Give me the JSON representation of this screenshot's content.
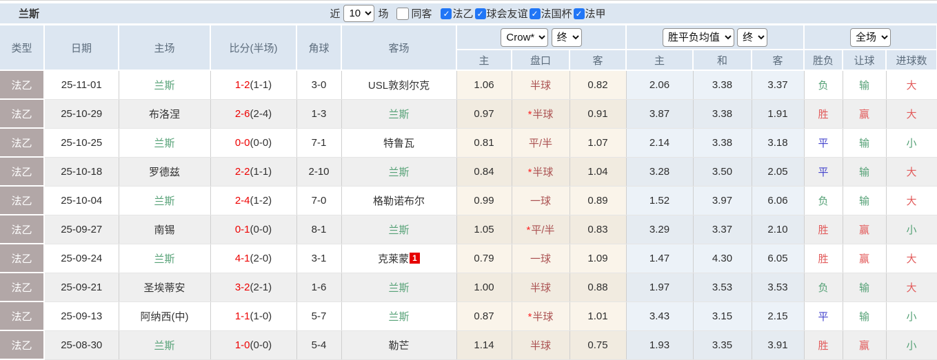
{
  "colors": {
    "header_bg": "#dce6f1",
    "league_cell_bg": "#b2a7a7",
    "team_green": "#55a176",
    "score_red": "#ee0000",
    "handicap_red": "#ab5252",
    "status_red": "#e25b5b",
    "status_green": "#55a176",
    "status_blue": "#4444cc",
    "checkbox_blue": "#2176f6",
    "badge_red": "#e60000"
  },
  "toolbar": {
    "team": "兰斯",
    "recent_label": "近",
    "recent_value": "10",
    "matches_label": "场",
    "same_away_label": "同客",
    "same_away_checked": false,
    "league_filters": [
      {
        "label": "法乙",
        "checked": true
      },
      {
        "label": "球会友谊",
        "checked": true
      },
      {
        "label": "法国杯",
        "checked": true
      },
      {
        "label": "法甲",
        "checked": true
      }
    ]
  },
  "table": {
    "base_columns": [
      "类型",
      "日期",
      "主场",
      "比分(半场)",
      "角球",
      "客场"
    ],
    "groups": {
      "odds": {
        "company": "Crow*",
        "period": "终",
        "sub": [
          "主",
          "盘口",
          "客"
        ]
      },
      "mean": {
        "company": "胜平负均值",
        "period": "终",
        "sub": [
          "主",
          "和",
          "客"
        ]
      },
      "fulltime": {
        "scope": "全场",
        "sub": [
          "胜负",
          "让球",
          "进球数"
        ]
      }
    },
    "rows": [
      {
        "league": "法乙",
        "date": "25-11-01",
        "home": "兰斯",
        "home_team": true,
        "score": "1-2",
        "half": "(1-1)",
        "corner": "3-0",
        "away": "USL敦刻尔克",
        "away_team": false,
        "away_badge": "",
        "odds_home": "1.06",
        "handicap": "半球",
        "handicap_star": false,
        "odds_away": "0.82",
        "mean_home": "2.06",
        "mean_draw": "3.38",
        "mean_away": "3.37",
        "result": "负",
        "result_color": "green",
        "handicap_result": "输",
        "handicap_result_color": "green",
        "goals": "大",
        "goals_color": "red"
      },
      {
        "league": "法乙",
        "date": "25-10-29",
        "home": "布洛涅",
        "home_team": false,
        "score": "2-6",
        "half": "(2-4)",
        "corner": "1-3",
        "away": "兰斯",
        "away_team": true,
        "away_badge": "",
        "odds_home": "0.97",
        "handicap": "半球",
        "handicap_star": true,
        "odds_away": "0.91",
        "mean_home": "3.87",
        "mean_draw": "3.38",
        "mean_away": "1.91",
        "result": "胜",
        "result_color": "red",
        "handicap_result": "赢",
        "handicap_result_color": "red",
        "goals": "大",
        "goals_color": "red"
      },
      {
        "league": "法乙",
        "date": "25-10-25",
        "home": "兰斯",
        "home_team": true,
        "score": "0-0",
        "half": "(0-0)",
        "corner": "7-1",
        "away": "特鲁瓦",
        "away_team": false,
        "away_badge": "",
        "odds_home": "0.81",
        "handicap": "平/半",
        "handicap_star": false,
        "odds_away": "1.07",
        "mean_home": "2.14",
        "mean_draw": "3.38",
        "mean_away": "3.18",
        "result": "平",
        "result_color": "blue",
        "handicap_result": "输",
        "handicap_result_color": "green",
        "goals": "小",
        "goals_color": "green"
      },
      {
        "league": "法乙",
        "date": "25-10-18",
        "home": "罗德兹",
        "home_team": false,
        "score": "2-2",
        "half": "(1-1)",
        "corner": "2-10",
        "away": "兰斯",
        "away_team": true,
        "away_badge": "",
        "odds_home": "0.84",
        "handicap": "半球",
        "handicap_star": true,
        "odds_away": "1.04",
        "mean_home": "3.28",
        "mean_draw": "3.50",
        "mean_away": "2.05",
        "result": "平",
        "result_color": "blue",
        "handicap_result": "输",
        "handicap_result_color": "green",
        "goals": "大",
        "goals_color": "red"
      },
      {
        "league": "法乙",
        "date": "25-10-04",
        "home": "兰斯",
        "home_team": true,
        "score": "2-4",
        "half": "(1-2)",
        "corner": "7-0",
        "away": "格勒诺布尔",
        "away_team": false,
        "away_badge": "",
        "odds_home": "0.99",
        "handicap": "一球",
        "handicap_star": false,
        "odds_away": "0.89",
        "mean_home": "1.52",
        "mean_draw": "3.97",
        "mean_away": "6.06",
        "result": "负",
        "result_color": "green",
        "handicap_result": "输",
        "handicap_result_color": "green",
        "goals": "大",
        "goals_color": "red"
      },
      {
        "league": "法乙",
        "date": "25-09-27",
        "home": "南锡",
        "home_team": false,
        "score": "0-1",
        "half": "(0-0)",
        "corner": "8-1",
        "away": "兰斯",
        "away_team": true,
        "away_badge": "",
        "odds_home": "1.05",
        "handicap": "平/半",
        "handicap_star": true,
        "odds_away": "0.83",
        "mean_home": "3.29",
        "mean_draw": "3.37",
        "mean_away": "2.10",
        "result": "胜",
        "result_color": "red",
        "handicap_result": "赢",
        "handicap_result_color": "red",
        "goals": "小",
        "goals_color": "green"
      },
      {
        "league": "法乙",
        "date": "25-09-24",
        "home": "兰斯",
        "home_team": true,
        "score": "4-1",
        "half": "(2-0)",
        "corner": "3-1",
        "away": "克莱蒙",
        "away_team": false,
        "away_badge": "1",
        "odds_home": "0.79",
        "handicap": "一球",
        "handicap_star": false,
        "odds_away": "1.09",
        "mean_home": "1.47",
        "mean_draw": "4.30",
        "mean_away": "6.05",
        "result": "胜",
        "result_color": "red",
        "handicap_result": "赢",
        "handicap_result_color": "red",
        "goals": "大",
        "goals_color": "red"
      },
      {
        "league": "法乙",
        "date": "25-09-21",
        "home": "圣埃蒂安",
        "home_team": false,
        "score": "3-2",
        "half": "(2-1)",
        "corner": "1-6",
        "away": "兰斯",
        "away_team": true,
        "away_badge": "",
        "odds_home": "1.00",
        "handicap": "半球",
        "handicap_star": false,
        "odds_away": "0.88",
        "mean_home": "1.97",
        "mean_draw": "3.53",
        "mean_away": "3.53",
        "result": "负",
        "result_color": "green",
        "handicap_result": "输",
        "handicap_result_color": "green",
        "goals": "大",
        "goals_color": "red"
      },
      {
        "league": "法乙",
        "date": "25-09-13",
        "home": "阿纳西(中)",
        "home_team": false,
        "score": "1-1",
        "half": "(1-0)",
        "corner": "5-7",
        "away": "兰斯",
        "away_team": true,
        "away_badge": "",
        "odds_home": "0.87",
        "handicap": "半球",
        "handicap_star": true,
        "odds_away": "1.01",
        "mean_home": "3.43",
        "mean_draw": "3.15",
        "mean_away": "2.15",
        "result": "平",
        "result_color": "blue",
        "handicap_result": "输",
        "handicap_result_color": "green",
        "goals": "小",
        "goals_color": "green"
      },
      {
        "league": "法乙",
        "date": "25-08-30",
        "home": "兰斯",
        "home_team": true,
        "score": "1-0",
        "half": "(0-0)",
        "corner": "5-4",
        "away": "勒芒",
        "away_team": false,
        "away_badge": "",
        "odds_home": "1.14",
        "handicap": "半球",
        "handicap_star": false,
        "odds_away": "0.75",
        "mean_home": "1.93",
        "mean_draw": "3.35",
        "mean_away": "3.91",
        "result": "胜",
        "result_color": "red",
        "handicap_result": "赢",
        "handicap_result_color": "red",
        "goals": "小",
        "goals_color": "green"
      }
    ]
  }
}
